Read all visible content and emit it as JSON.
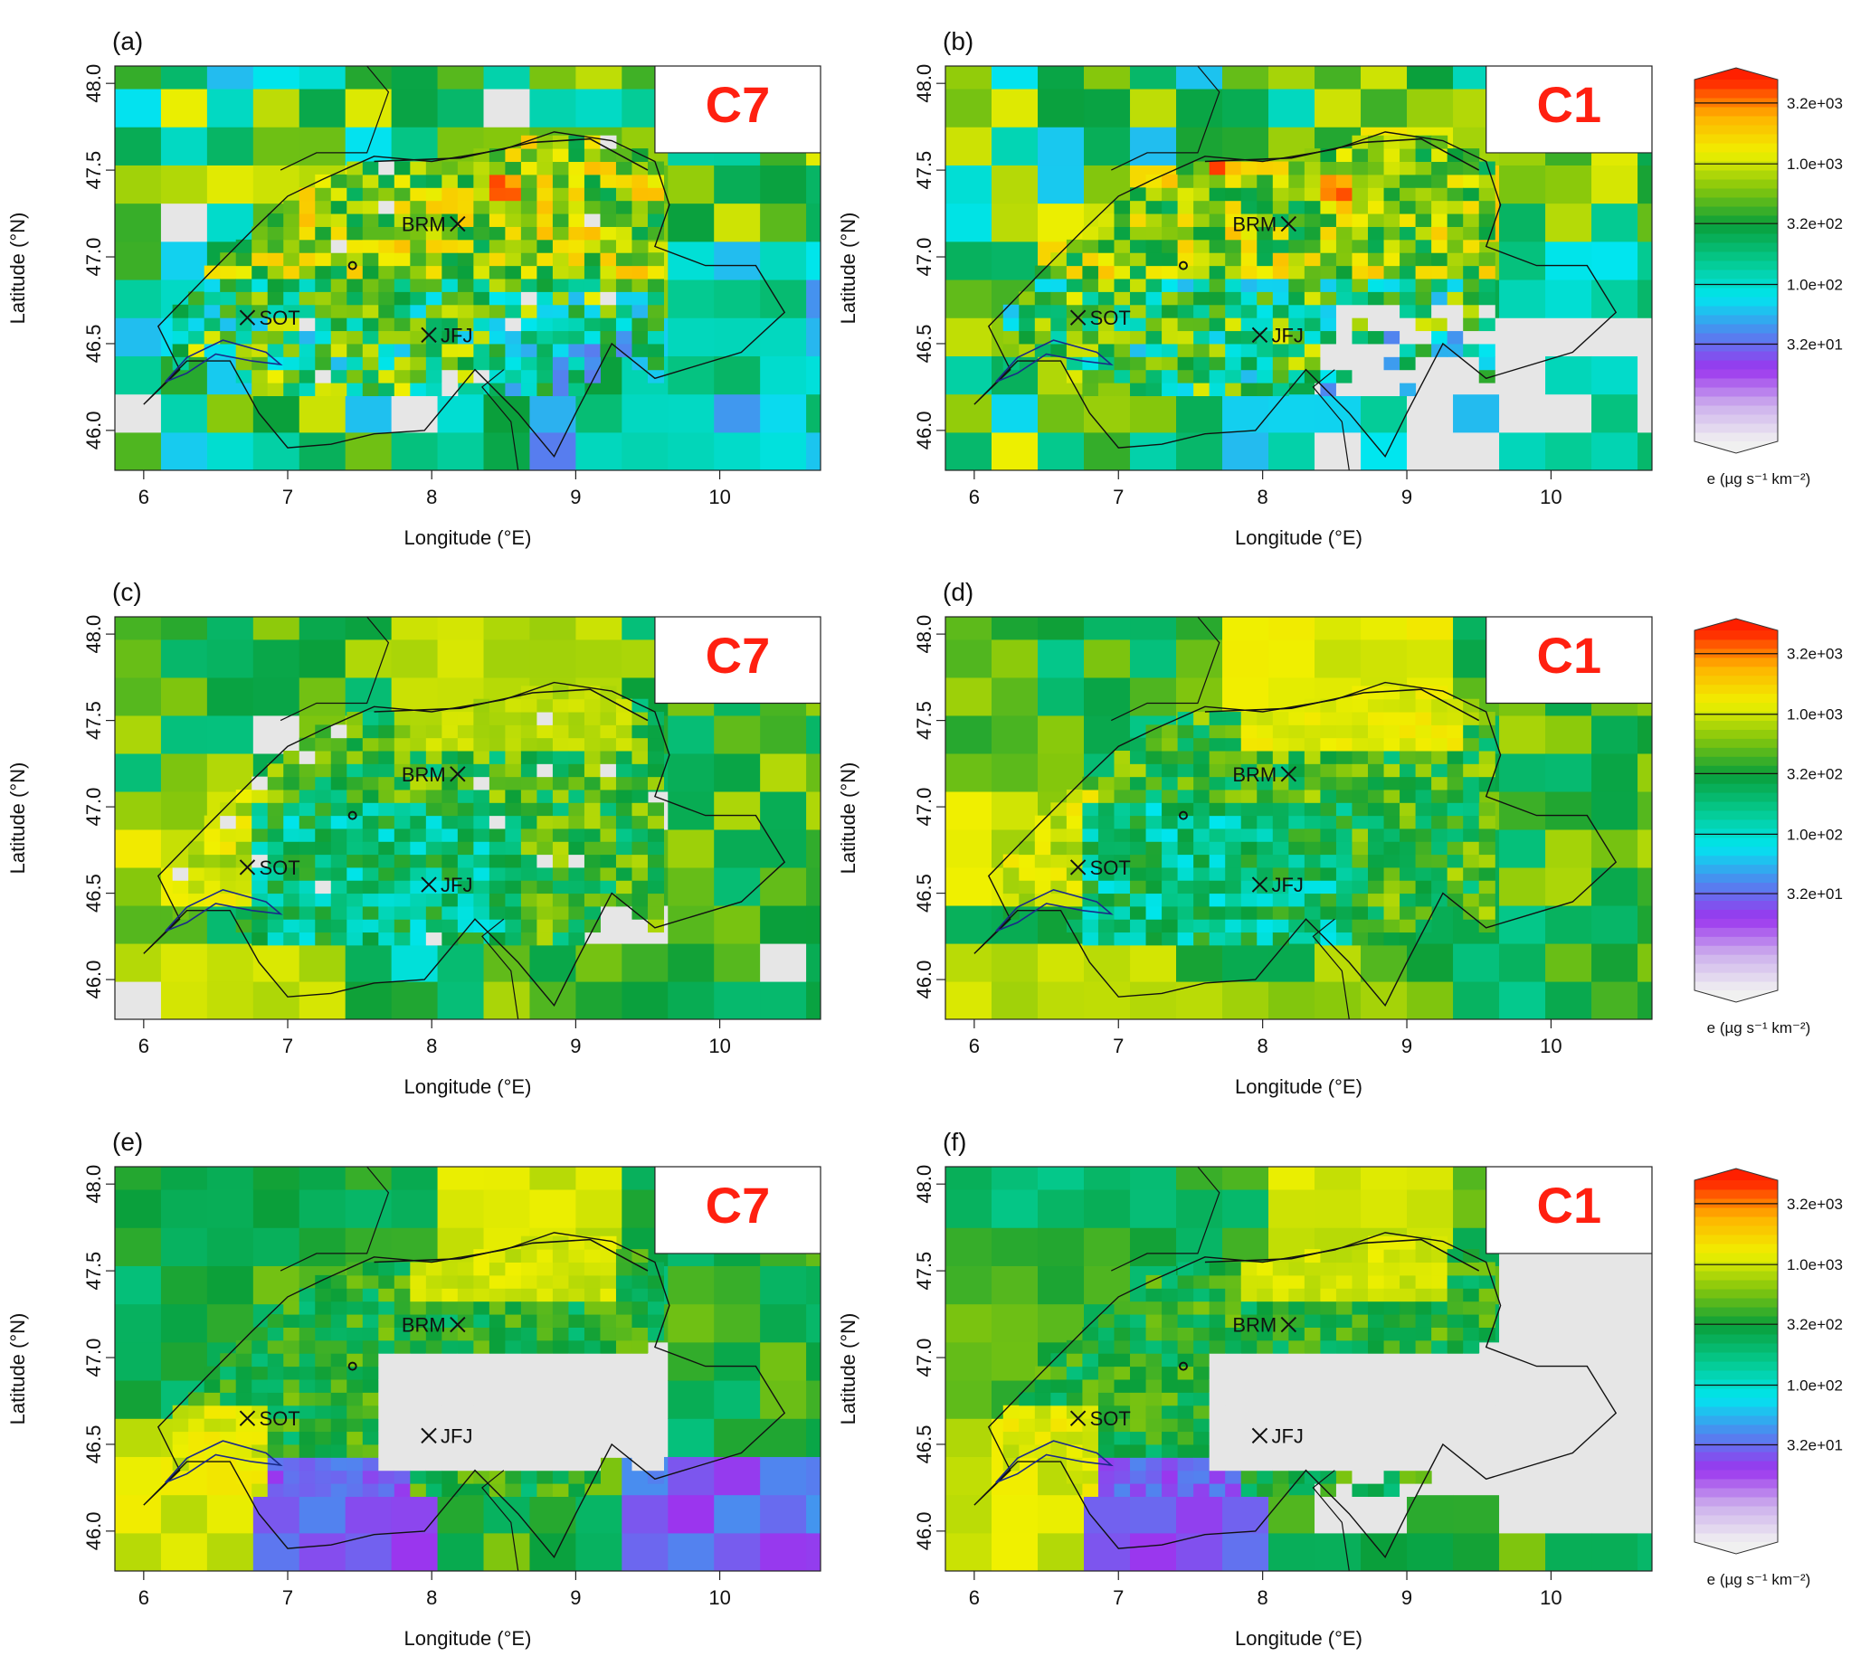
{
  "figure": {
    "panels": [
      {
        "id": "a",
        "label": "(a)",
        "case": "C7",
        "scheme": "a"
      },
      {
        "id": "b",
        "label": "(b)",
        "case": "C1",
        "scheme": "b"
      },
      {
        "id": "c",
        "label": "(c)",
        "case": "C7",
        "scheme": "c"
      },
      {
        "id": "d",
        "label": "(d)",
        "case": "C1",
        "scheme": "d"
      },
      {
        "id": "e",
        "label": "(e)",
        "case": "C7",
        "scheme": "e"
      },
      {
        "id": "f",
        "label": "(f)",
        "case": "C1",
        "scheme": "f"
      }
    ],
    "stations": [
      {
        "name": "SOT",
        "lon": 6.72,
        "lat": 46.65
      },
      {
        "name": "BRM",
        "lon": 8.18,
        "lat": 47.19
      },
      {
        "name": "JFJ",
        "lon": 7.98,
        "lat": 46.55
      }
    ],
    "colors": {
      "case_label": "#ff2010",
      "no_data": "#e6e6e6",
      "gradient": [
        "#f0f0f0",
        "#cdb0ec",
        "#9b35ee",
        "#4f86ef",
        "#00e6ef",
        "#04c98d",
        "#0a9f3a",
        "#85c70c",
        "#f0f000",
        "#ffb200",
        "#ff2000"
      ]
    }
  },
  "chart_data": [
    {
      "type": "heatmap",
      "title": "(a)",
      "annotation": "C7",
      "xlabel": "Longitude (°E)",
      "ylabel": "Latitude (°N)",
      "xlim": [
        5.8,
        10.7
      ],
      "ylim": [
        45.77,
        48.1
      ],
      "xticks": [
        6,
        7,
        8,
        9,
        10
      ],
      "yticks": [
        46.0,
        46.5,
        47.0,
        47.5,
        48.0
      ],
      "ytick_labels": [
        "46.0",
        "46.5",
        "47.0",
        "47.5",
        "48.0"
      ],
      "value_label": "e (µg s⁻¹ km⁻²)",
      "approximate_hotspots": [
        {
          "lon": 6.15,
          "lat": 46.2,
          "level": "high"
        },
        {
          "lon": 7.65,
          "lat": 47.55,
          "level": "high"
        },
        {
          "lon": 8.55,
          "lat": 47.4,
          "level": "high"
        }
      ],
      "colorbar": null
    },
    {
      "type": "heatmap",
      "title": "(b)",
      "annotation": "C1",
      "xlabel": "Longitude (°E)",
      "ylabel": "Latitude (°N)",
      "xlim": [
        5.8,
        10.7
      ],
      "ylim": [
        45.77,
        48.1
      ],
      "xticks": [
        6,
        7,
        8,
        9,
        10
      ],
      "yticks": [
        46.0,
        46.5,
        47.0,
        47.5,
        48.0
      ],
      "ytick_labels": [
        "46.0",
        "46.5",
        "47.0",
        "47.5",
        "48.0"
      ],
      "approximate_hotspots": [
        {
          "lon": 7.65,
          "lat": 47.55,
          "level": "very high"
        },
        {
          "lon": 8.55,
          "lat": 47.4,
          "level": "very high"
        },
        {
          "lon": 6.6,
          "lat": 46.55,
          "level": "high"
        }
      ],
      "colorbar": {
        "label": "e (µg s⁻¹ km⁻²)",
        "ticks": [
          "3.2e+03",
          "1.0e+03",
          "3.2e+02",
          "1.0e+02",
          "3.2e+01"
        ],
        "tick_values": [
          3200,
          1000,
          320,
          100,
          32
        ],
        "scale": "log"
      }
    },
    {
      "type": "heatmap",
      "title": "(c)",
      "annotation": "C7",
      "xlabel": "Longitude (°E)",
      "ylabel": "Latitude (°N)",
      "xlim": [
        5.8,
        10.7
      ],
      "ylim": [
        45.77,
        48.1
      ],
      "xticks": [
        6,
        7,
        8,
        9,
        10
      ],
      "yticks": [
        46.0,
        46.5,
        47.0,
        47.5,
        48.0
      ],
      "ytick_labels": [
        "46.0",
        "46.5",
        "47.0",
        "47.5",
        "48.0"
      ],
      "colorbar": null
    },
    {
      "type": "heatmap",
      "title": "(d)",
      "annotation": "C1",
      "xlabel": "Longitude (°E)",
      "ylabel": "Latitude (°N)",
      "xlim": [
        5.8,
        10.7
      ],
      "ylim": [
        45.77,
        48.1
      ],
      "xticks": [
        6,
        7,
        8,
        9,
        10
      ],
      "yticks": [
        46.0,
        46.5,
        47.0,
        47.5,
        48.0
      ],
      "ytick_labels": [
        "46.0",
        "46.5",
        "47.0",
        "47.5",
        "48.0"
      ],
      "colorbar": {
        "label": "e (µg s⁻¹ km⁻²)",
        "ticks": [
          "3.2e+03",
          "1.0e+03",
          "3.2e+02",
          "1.0e+02",
          "3.2e+01"
        ],
        "tick_values": [
          3200,
          1000,
          320,
          100,
          32
        ],
        "scale": "log"
      }
    },
    {
      "type": "heatmap",
      "title": "(e)",
      "annotation": "C7",
      "xlabel": "Longitude (°E)",
      "ylabel": "Latitude (°N)",
      "xlim": [
        5.8,
        10.7
      ],
      "ylim": [
        45.77,
        48.1
      ],
      "xticks": [
        6,
        7,
        8,
        9,
        10
      ],
      "yticks": [
        46.0,
        46.5,
        47.0,
        47.5,
        48.0
      ],
      "ytick_labels": [
        "46.0",
        "46.5",
        "47.0",
        "47.5",
        "48.0"
      ],
      "colorbar": null
    },
    {
      "type": "heatmap",
      "title": "(f)",
      "annotation": "C1",
      "xlabel": "Longitude (°E)",
      "ylabel": "Latitude (°N)",
      "xlim": [
        5.8,
        10.7
      ],
      "ylim": [
        45.77,
        48.1
      ],
      "xticks": [
        6,
        7,
        8,
        9,
        10
      ],
      "yticks": [
        46.0,
        46.5,
        47.0,
        47.5,
        48.0
      ],
      "ytick_labels": [
        "46.0",
        "46.5",
        "47.0",
        "47.5",
        "48.0"
      ],
      "colorbar": {
        "label": "e (µg s⁻¹ km⁻²)",
        "ticks": [
          "3.2e+03",
          "1.0e+03",
          "3.2e+02",
          "1.0e+02",
          "3.2e+01"
        ],
        "tick_values": [
          3200,
          1000,
          320,
          100,
          32
        ],
        "scale": "log"
      }
    }
  ]
}
